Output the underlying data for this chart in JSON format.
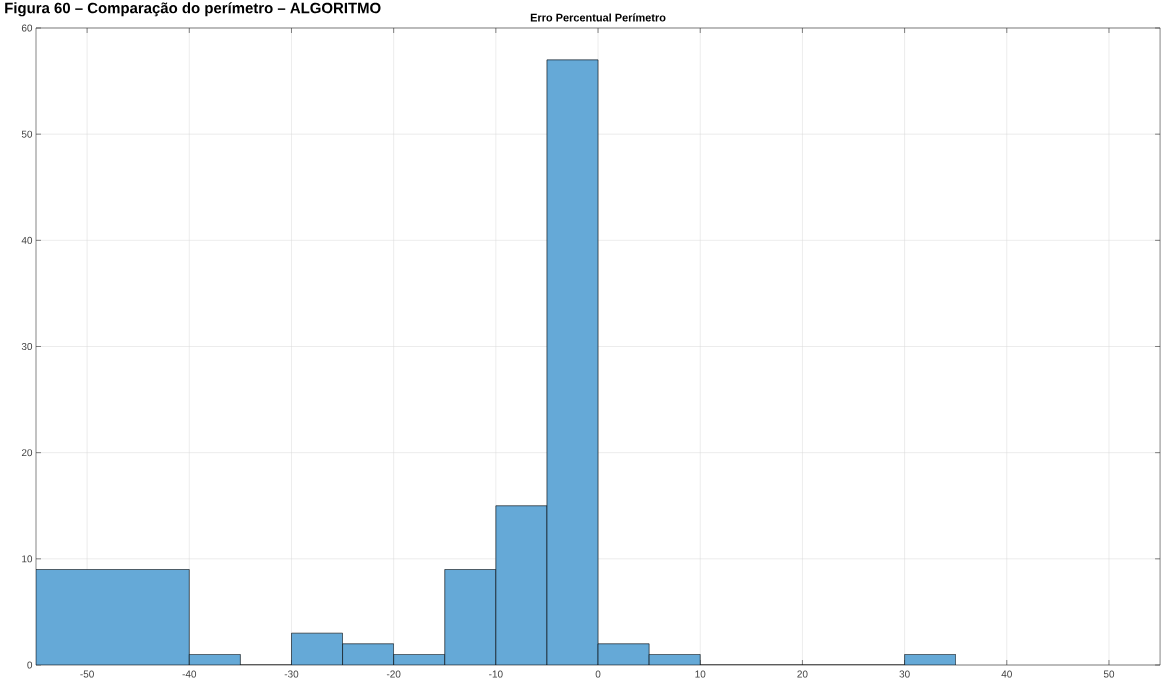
{
  "chart_data": {
    "type": "histogram",
    "title": "Figura 60 – Comparação do perímetro – ALGORITMO",
    "subtitle": "Erro Percentual Perímetro",
    "bins": [
      -55,
      -40,
      -35,
      -30,
      -25,
      -20,
      -15,
      -10,
      -5,
      0,
      5,
      10,
      30,
      35
    ],
    "values": [
      9,
      1,
      0,
      3,
      2,
      1,
      9,
      15,
      57,
      2,
      1,
      0,
      1
    ],
    "color": "#65a9d7",
    "xlim": [
      -55,
      55
    ],
    "ylim": [
      0,
      60
    ],
    "xticks": [
      -50,
      -40,
      -30,
      -20,
      -10,
      0,
      10,
      20,
      30,
      40,
      50
    ],
    "yticks": [
      0,
      10,
      20,
      30,
      40,
      50,
      60
    ],
    "grid": true
  }
}
